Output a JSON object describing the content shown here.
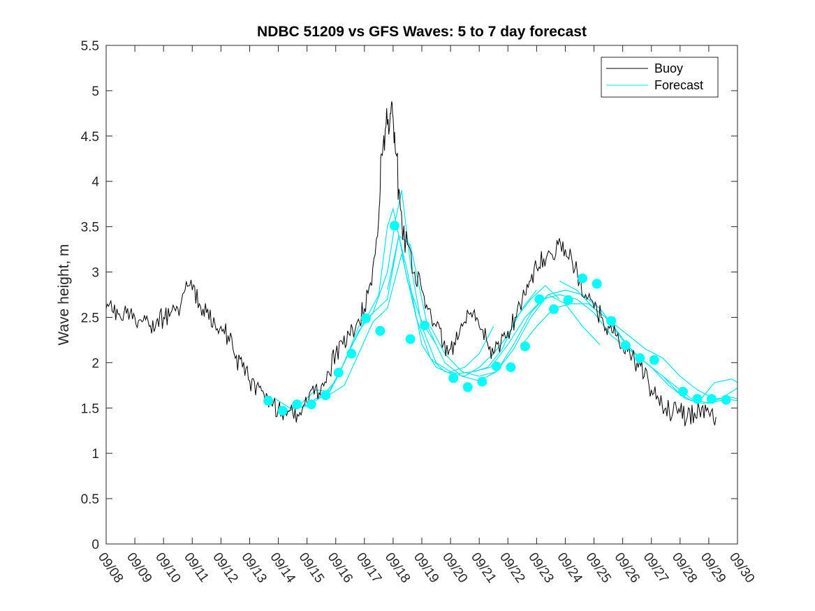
{
  "chart_data": {
    "type": "line",
    "title": "NDBC 51209 vs GFS Waves: 5 to 7 day forecast",
    "xlabel": "",
    "ylabel": "Wave height, m",
    "x_unit": "days since 09/08",
    "xlim": [
      0,
      22
    ],
    "ylim": [
      0,
      5.5
    ],
    "yticks": [
      0,
      0.5,
      1,
      1.5,
      2,
      2.5,
      3,
      3.5,
      4,
      4.5,
      5,
      5.5
    ],
    "ytick_labels": [
      "0",
      "0.5",
      "1",
      "1.5",
      "2",
      "2.5",
      "3",
      "3.5",
      "4",
      "4.5",
      "5",
      "5.5"
    ],
    "xticks": [
      0,
      1,
      2,
      3,
      4,
      5,
      6,
      7,
      8,
      9,
      10,
      11,
      12,
      13,
      14,
      15,
      16,
      17,
      18,
      19,
      20,
      21,
      22
    ],
    "xtick_labels": [
      "09/08",
      "09/09",
      "09/10",
      "09/11",
      "09/12",
      "09/13",
      "09/14",
      "09/15",
      "09/16",
      "09/17",
      "09/18",
      "09/19",
      "09/20",
      "09/21",
      "09/22",
      "09/23",
      "09/24",
      "09/25",
      "09/26",
      "09/27",
      "09/28",
      "09/29",
      "09/30"
    ],
    "legend": [
      "Buoy",
      "Forecast"
    ],
    "legend_position": "top-right",
    "colors": {
      "buoy": "#000000",
      "forecast": "#00e5ee",
      "marker": "#00ffff",
      "axis": "#262626"
    },
    "series": [
      {
        "name": "Buoy",
        "x": [
          0,
          0.25,
          0.5,
          0.75,
          1,
          1.25,
          1.5,
          1.75,
          2,
          2.25,
          2.5,
          2.75,
          3,
          3.25,
          3.5,
          3.75,
          4,
          4.25,
          4.5,
          4.75,
          5,
          5.25,
          5.5,
          5.75,
          6,
          6.25,
          6.5,
          6.75,
          7,
          7.25,
          7.5,
          7.75,
          8,
          8.25,
          8.5,
          8.75,
          9,
          9.25,
          9.5,
          9.6,
          9.75,
          9.9,
          10,
          10.1,
          10.25,
          10.5,
          10.75,
          11,
          11.25,
          11.5,
          11.75,
          12,
          12.25,
          12.5,
          12.75,
          13,
          13.25,
          13.5,
          13.75,
          14,
          14.25,
          14.5,
          14.75,
          15,
          15.25,
          15.5,
          15.75,
          16,
          16.25,
          16.5,
          16.75,
          17,
          17.25,
          17.5,
          17.75,
          18,
          18.25,
          18.5,
          18.75,
          19,
          19.25,
          19.5,
          19.75,
          20,
          20.25,
          20.5,
          20.75,
          21,
          21.25
        ],
        "values": [
          2.6,
          2.55,
          2.5,
          2.6,
          2.5,
          2.45,
          2.4,
          2.45,
          2.5,
          2.55,
          2.6,
          2.8,
          2.8,
          2.65,
          2.55,
          2.5,
          2.4,
          2.3,
          2.05,
          1.95,
          1.8,
          1.75,
          1.65,
          1.55,
          1.5,
          1.45,
          1.45,
          1.45,
          1.55,
          1.65,
          1.75,
          1.9,
          2.1,
          2.2,
          2.3,
          2.45,
          2.6,
          2.85,
          3.6,
          4.3,
          4.6,
          4.75,
          4.7,
          4.3,
          3.7,
          3.3,
          3.0,
          2.8,
          2.6,
          2.4,
          2.2,
          2.15,
          2.25,
          2.45,
          2.5,
          2.4,
          2.25,
          2.1,
          2.2,
          2.35,
          2.5,
          2.7,
          2.9,
          3.05,
          3.15,
          3.2,
          3.3,
          3.25,
          3.1,
          2.9,
          2.7,
          2.6,
          2.5,
          2.4,
          2.3,
          2.2,
          2.1,
          2.0,
          1.85,
          1.7,
          1.6,
          1.5,
          1.45,
          1.45,
          1.4,
          1.45,
          1.5,
          1.45,
          1.4
        ]
      },
      {
        "name": "Forecast",
        "lines": [
          {
            "x": [
              5.9,
              6.4,
              7,
              7.5,
              8,
              8.5,
              9,
              9.5,
              9.8,
              10,
              10.2,
              10.5,
              11,
              11.5
            ],
            "values": [
              1.6,
              1.5,
              1.52,
              1.62,
              1.8,
              2.15,
              2.45,
              2.75,
              3.5,
              3.7,
              3.4,
              2.9,
              2.45,
              2.2
            ]
          },
          {
            "x": [
              6.3,
              6.8,
              7.3,
              7.8,
              8.3,
              8.8,
              9.3,
              9.8,
              10.1,
              10.3,
              10.6,
              11,
              11.5,
              12,
              12.5,
              13,
              13.5
            ],
            "values": [
              1.45,
              1.55,
              1.7,
              1.68,
              2.0,
              2.4,
              2.55,
              3.0,
              3.6,
              3.9,
              3.1,
              2.4,
              2.0,
              1.9,
              1.95,
              2.1,
              2.4
            ]
          },
          {
            "x": [
              6.8,
              7.3,
              7.8,
              8.3,
              8.8,
              9.3,
              9.8,
              10.2,
              10.5,
              11,
              11.5,
              12,
              12.5,
              13,
              13.5,
              14,
              14.5,
              15
            ],
            "values": [
              1.5,
              1.6,
              1.7,
              2.0,
              2.35,
              2.55,
              2.7,
              3.4,
              3.0,
              2.2,
              1.95,
              1.88,
              1.85,
              1.95,
              2.1,
              2.3,
              2.6,
              2.8
            ]
          },
          {
            "x": [
              7.3,
              7.8,
              8.3,
              8.8,
              9.3,
              9.8,
              10.3,
              10.8,
              11.3,
              11.8,
              12.3,
              12.8,
              13.3,
              13.8,
              14.3,
              14.8,
              15.3,
              15.8
            ],
            "values": [
              1.6,
              1.65,
              1.75,
              2.1,
              2.45,
              2.6,
              3.2,
              2.5,
              2.05,
              1.9,
              1.88,
              1.9,
              1.95,
              2.15,
              2.5,
              2.7,
              2.85,
              2.7
            ]
          },
          {
            "x": [
              9.8,
              10.2,
              10.6,
              11.2,
              11.8,
              12.4,
              13,
              13.6,
              14.2,
              14.8,
              15.4,
              16,
              16.6,
              17.2
            ],
            "values": [
              2.8,
              3.4,
              3.3,
              2.4,
              2.0,
              1.85,
              1.8,
              1.9,
              2.2,
              2.55,
              2.75,
              2.65,
              2.4,
              2.2
            ]
          },
          {
            "x": [
              11.3,
              11.8,
              12.4,
              13,
              13.6,
              14.2,
              14.8,
              15.4,
              16,
              16.6,
              17.2,
              17.8,
              18.4,
              19,
              19.6,
              20.2,
              20.8,
              21.4,
              22
            ],
            "values": [
              2.4,
              2.1,
              1.9,
              1.85,
              1.9,
              2.15,
              2.5,
              2.75,
              2.8,
              2.75,
              2.6,
              2.35,
              2.1,
              1.95,
              1.75,
              1.6,
              1.55,
              1.6,
              1.72
            ]
          },
          {
            "x": [
              12.8,
              13.4,
              14,
              14.6,
              15.2,
              15.8,
              16.4,
              17,
              17.6,
              18.2,
              18.8,
              19.4,
              20,
              20.6,
              21.2,
              21.8,
              22
            ],
            "values": [
              1.9,
              1.95,
              2.2,
              2.5,
              2.7,
              2.75,
              2.7,
              2.55,
              2.3,
              2.15,
              2.0,
              1.85,
              1.65,
              1.55,
              1.78,
              1.82,
              1.78
            ]
          },
          {
            "x": [
              14.5,
              15,
              15.6,
              16.2,
              16.8,
              17.4,
              18,
              18.6,
              19.2,
              19.8,
              20.4,
              21,
              21.6,
              22
            ],
            "values": [
              2.2,
              2.4,
              2.6,
              2.65,
              2.65,
              2.5,
              2.25,
              2.05,
              1.9,
              1.75,
              1.6,
              1.55,
              1.6,
              1.58
            ]
          },
          {
            "x": [
              15.8,
              16.4,
              17,
              17.6,
              18.2,
              18.8,
              19.4,
              20,
              20.6,
              21.2,
              21.8,
              22
            ],
            "values": [
              2.9,
              2.8,
              2.6,
              2.45,
              2.3,
              2.15,
              2.05,
              1.85,
              1.7,
              1.6,
              1.62,
              1.6
            ]
          }
        ],
        "markers": {
          "x": [
            5.65,
            6.15,
            6.65,
            7.15,
            7.65,
            8.1,
            8.55,
            9.05,
            9.55,
            10.05,
            10.6,
            11.1,
            12.1,
            12.6,
            13.1,
            13.6,
            14.1,
            14.6,
            15.1,
            15.6,
            16.1,
            16.6,
            17.1,
            17.6,
            18.1,
            18.6,
            19.1,
            20.1,
            20.6,
            21.1,
            21.6
          ],
          "values": [
            1.58,
            1.47,
            1.54,
            1.54,
            1.64,
            1.89,
            2.1,
            2.49,
            2.35,
            3.51,
            2.26,
            2.41,
            1.83,
            1.73,
            1.79,
            1.96,
            1.95,
            2.18,
            2.7,
            2.59,
            2.69,
            2.93,
            2.87,
            2.46,
            2.19,
            2.05,
            2.03,
            1.68,
            1.6,
            1.6,
            1.59
          ]
        }
      }
    ]
  }
}
